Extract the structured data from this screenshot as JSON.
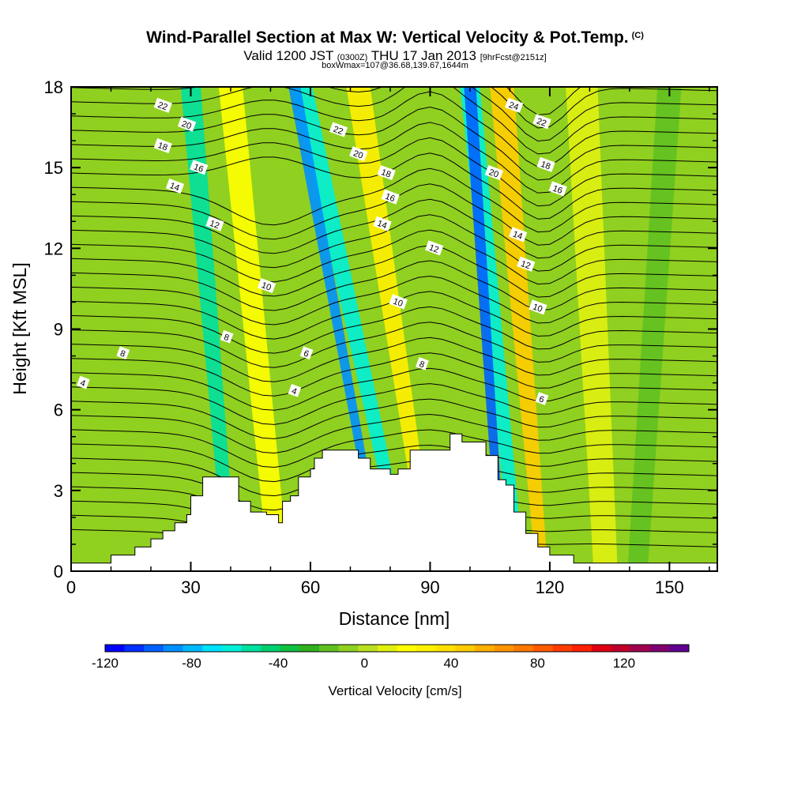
{
  "header": {
    "title": "Wind-Parallel Section at Max W: Vertical Velocity & Pot.Temp.",
    "title_mark": "(C)",
    "valid_prefix": "Valid 1200 JST",
    "valid_z": "(0300Z)",
    "valid_date": "THU 17 Jan 2013",
    "valid_fcst": "[9hrFcst@2151z]",
    "box_info": "boxWmax=107@36.68,139.67,1644m"
  },
  "chart_data": {
    "type": "heatmap",
    "xlabel": "Distance [nm]",
    "ylabel": "Height [Kft MSL]",
    "xlim": [
      0,
      162
    ],
    "ylim": [
      0,
      18
    ],
    "x_ticks": [
      0,
      30,
      60,
      90,
      120,
      150
    ],
    "y_ticks": [
      0,
      3,
      6,
      9,
      12,
      15,
      18
    ],
    "colorbar": {
      "title": "Vertical Velocity [cm/s]",
      "range": [
        -120,
        150
      ],
      "step": 10,
      "tick_values": [
        -120,
        -80,
        -40,
        0,
        40,
        80,
        120
      ],
      "tick_labels": [
        "-120",
        "-80",
        "-40",
        "0",
        "40",
        "80",
        "120"
      ],
      "colors": [
        "#0000ff",
        "#0030ff",
        "#0060ff",
        "#0090ff",
        "#00b8ff",
        "#00e0ff",
        "#00f0d8",
        "#00e0a0",
        "#00d070",
        "#10c040",
        "#30b020",
        "#60c020",
        "#90d020",
        "#b8e020",
        "#e0f010",
        "#ffff00",
        "#fff000",
        "#ffe000",
        "#ffcc00",
        "#ffb000",
        "#ff9400",
        "#ff7800",
        "#ff5c00",
        "#ff3c00",
        "#ff2000",
        "#e00010",
        "#c0002c",
        "#a00050",
        "#800070",
        "#600090"
      ]
    },
    "terrain_profile": {
      "x": [
        0,
        10,
        10,
        16,
        16,
        20,
        20,
        23,
        23,
        26,
        26,
        29,
        29,
        30,
        30,
        33,
        33,
        36,
        36,
        42,
        42,
        45,
        45,
        49,
        49,
        52,
        52,
        53,
        53,
        55,
        55,
        57,
        57,
        60,
        60,
        61,
        61,
        63,
        63,
        65,
        65,
        72,
        72,
        75,
        75,
        80,
        80,
        82,
        82,
        85,
        85,
        95,
        95,
        98,
        98,
        104,
        104,
        107,
        107,
        109,
        109,
        111,
        111,
        114,
        114,
        117,
        117,
        120,
        120,
        126,
        126,
        156,
        156,
        162
      ],
      "y": [
        0.3,
        0.3,
        0.6,
        0.6,
        0.9,
        0.9,
        1.2,
        1.2,
        1.5,
        1.5,
        1.8,
        1.8,
        2.1,
        2.1,
        2.8,
        2.8,
        3.5,
        3.5,
        3.5,
        3.5,
        2.6,
        2.6,
        2.2,
        2.2,
        2.1,
        2.1,
        1.8,
        1.8,
        2.6,
        2.6,
        2.8,
        2.8,
        3.5,
        3.5,
        3.8,
        3.8,
        4.2,
        4.2,
        4.5,
        4.5,
        4.5,
        4.5,
        4.2,
        4.2,
        3.8,
        3.8,
        3.6,
        3.6,
        3.8,
        3.8,
        4.5,
        4.5,
        5.1,
        5.1,
        4.8,
        4.8,
        4.3,
        4.3,
        3.4,
        3.4,
        3.2,
        3.2,
        2.2,
        2.2,
        1.4,
        1.4,
        0.9,
        0.9,
        0.6,
        0.6,
        0.3,
        0.3,
        0.3,
        0.3
      ]
    },
    "velocity_bands": [
      {
        "x_base": 4,
        "x_top": 12,
        "w_bottom": 5,
        "w_top": 5,
        "value": 0
      },
      {
        "x_base": 40,
        "x_top": 30,
        "w_bottom": 3,
        "w_top": 5,
        "value": -50
      },
      {
        "x_base": 52,
        "x_top": 40,
        "w_bottom": 5,
        "w_top": 6,
        "value": 35
      },
      {
        "x_base": 84,
        "x_top": 58,
        "w_bottom": 3,
        "w_top": 5,
        "value": -60
      },
      {
        "x_base": 78,
        "x_top": 56,
        "w_bottom": 2,
        "w_top": 3,
        "value": -90
      },
      {
        "x_base": 90,
        "x_top": 72,
        "w_bottom": 3,
        "w_top": 6,
        "value": 45
      },
      {
        "x_base": 112,
        "x_top": 100,
        "w_bottom": 3,
        "w_top": 5,
        "value": -55
      },
      {
        "x_base": 108,
        "x_top": 100,
        "w_bottom": 2,
        "w_top": 3,
        "value": -95
      },
      {
        "x_base": 118,
        "x_top": 108,
        "w_bottom": 3,
        "w_top": 6,
        "value": 65
      },
      {
        "x_base": 134,
        "x_top": 128,
        "w_bottom": 6,
        "w_top": 8,
        "value": 20
      },
      {
        "x_base": 142,
        "x_top": 150,
        "w_bottom": 5,
        "w_top": 6,
        "value": -10
      }
    ],
    "contour_labels": [
      {
        "x": 23,
        "y": 17.3,
        "text": "22"
      },
      {
        "x": 29,
        "y": 16.6,
        "text": "20"
      },
      {
        "x": 23,
        "y": 15.8,
        "text": "18"
      },
      {
        "x": 32,
        "y": 15.0,
        "text": "16"
      },
      {
        "x": 26,
        "y": 14.3,
        "text": "14"
      },
      {
        "x": 36,
        "y": 12.9,
        "text": "12"
      },
      {
        "x": 49,
        "y": 10.6,
        "text": "10"
      },
      {
        "x": 39,
        "y": 8.7,
        "text": "8"
      },
      {
        "x": 59,
        "y": 8.1,
        "text": "6"
      },
      {
        "x": 56,
        "y": 6.7,
        "text": "4"
      },
      {
        "x": 13,
        "y": 8.1,
        "text": "8"
      },
      {
        "x": 3,
        "y": 7.0,
        "text": "4"
      },
      {
        "x": 67,
        "y": 16.4,
        "text": "22"
      },
      {
        "x": 72,
        "y": 15.5,
        "text": "20"
      },
      {
        "x": 79,
        "y": 14.8,
        "text": "18"
      },
      {
        "x": 80,
        "y": 13.9,
        "text": "16"
      },
      {
        "x": 78,
        "y": 12.9,
        "text": "14"
      },
      {
        "x": 91,
        "y": 12.0,
        "text": "12"
      },
      {
        "x": 82,
        "y": 10.0,
        "text": "10"
      },
      {
        "x": 88,
        "y": 7.7,
        "text": "8"
      },
      {
        "x": 111,
        "y": 17.3,
        "text": "24"
      },
      {
        "x": 118,
        "y": 16.7,
        "text": "22"
      },
      {
        "x": 119,
        "y": 15.1,
        "text": "18"
      },
      {
        "x": 122,
        "y": 14.2,
        "text": "16"
      },
      {
        "x": 106,
        "y": 14.8,
        "text": "20"
      },
      {
        "x": 112,
        "y": 12.5,
        "text": "14"
      },
      {
        "x": 114,
        "y": 11.4,
        "text": "12"
      },
      {
        "x": 117,
        "y": 9.8,
        "text": "10"
      },
      {
        "x": 118,
        "y": 6.4,
        "text": "6"
      }
    ]
  }
}
